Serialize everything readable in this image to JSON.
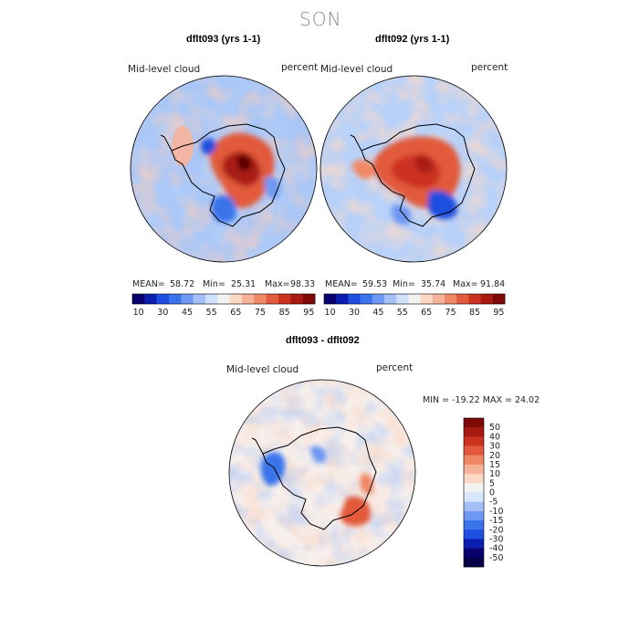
{
  "page_title": "SON",
  "panels": [
    {
      "title": "dflt093 (yrs 1-1)",
      "variable": "Mid-level cloud",
      "units": "percent",
      "mean": "58.72",
      "min": "25.31",
      "max": "98.33",
      "mean_label": "MEAN=",
      "min_label": "Min=",
      "max_label": "Max="
    },
    {
      "title": "dflt092 (yrs 1-1)",
      "variable": "Mid-level cloud",
      "units": "percent",
      "mean": "59.53",
      "min": "35.74",
      "max": "91.84",
      "mean_label": "MEAN=",
      "min_label": "Min=",
      "max_label": "Max="
    },
    {
      "title": "dflt093 - dflt092",
      "variable": "Mid-level cloud",
      "units": "percent",
      "minmax_text": "MIN = -19.22 MAX =  24.02"
    }
  ],
  "chart_data": [
    {
      "type": "heatmap",
      "title": "dflt093 (yrs 1-1)",
      "projection": "south polar stereographic",
      "variable": "Mid-level cloud",
      "units": "percent",
      "stats": {
        "mean": 58.72,
        "min": 25.31,
        "max": 98.33
      },
      "colorbar": {
        "orientation": "horizontal",
        "tick_labels": [
          "10",
          "30",
          "45",
          "55",
          "65",
          "75",
          "85",
          "95"
        ],
        "levels": [
          10,
          20,
          30,
          40,
          45,
          50,
          55,
          60,
          65,
          70,
          75,
          80,
          85,
          90,
          95
        ],
        "colors": [
          "#08006e",
          "#0a1fb0",
          "#1f4fe0",
          "#3a74ec",
          "#6e98f2",
          "#a4c0f7",
          "#cfe0fb",
          "#f2f2f2",
          "#fbd7c4",
          "#f7b39a",
          "#ef8864",
          "#e25a3b",
          "#cb3320",
          "#a91a12",
          "#7d0a06"
        ]
      }
    },
    {
      "type": "heatmap",
      "title": "dflt092 (yrs 1-1)",
      "projection": "south polar stereographic",
      "variable": "Mid-level cloud",
      "units": "percent",
      "stats": {
        "mean": 59.53,
        "min": 35.74,
        "max": 91.84
      },
      "colorbar": {
        "orientation": "horizontal",
        "tick_labels": [
          "10",
          "30",
          "45",
          "55",
          "65",
          "75",
          "85",
          "95"
        ],
        "levels": [
          10,
          20,
          30,
          40,
          45,
          50,
          55,
          60,
          65,
          70,
          75,
          80,
          85,
          90,
          95
        ],
        "colors": [
          "#08006e",
          "#0a1fb0",
          "#1f4fe0",
          "#3a74ec",
          "#6e98f2",
          "#a4c0f7",
          "#cfe0fb",
          "#f2f2f2",
          "#fbd7c4",
          "#f7b39a",
          "#ef8864",
          "#e25a3b",
          "#cb3320",
          "#a91a12",
          "#7d0a06"
        ]
      }
    },
    {
      "type": "heatmap",
      "title": "dflt093 - dflt092",
      "projection": "south polar stereographic",
      "variable": "Mid-level cloud",
      "units": "percent",
      "stats": {
        "min": -19.22,
        "max": 24.02
      },
      "colorbar": {
        "orientation": "vertical",
        "tick_labels": [
          "50",
          "40",
          "30",
          "20",
          "15",
          "10",
          "5",
          "0",
          "-5",
          "-10",
          "-15",
          "-20",
          "-30",
          "-40",
          "-50"
        ],
        "colors": [
          "#7d0a06",
          "#a91a12",
          "#cb3320",
          "#e25a3b",
          "#ef8864",
          "#f7b39a",
          "#fbd7c4",
          "#f2f2f2",
          "#d7e6fb",
          "#a4c0f7",
          "#6e98f2",
          "#3a74ec",
          "#1f4fe0",
          "#0a1fb0",
          "#08006e",
          "#050048"
        ]
      }
    }
  ]
}
